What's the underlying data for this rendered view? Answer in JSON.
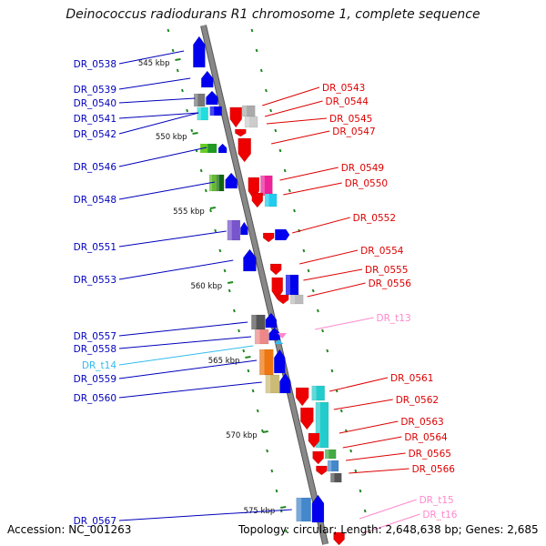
{
  "title": "Deinococcus radiodurans R1 chromosome 1, complete sequence",
  "accession": "Accession: NC_001263",
  "footer": "Topology: circular; Length: 2,648,638 bp; Genes: 2,685",
  "colors": {
    "left_labels": "#0000bb",
    "right_labels": "#dd0000",
    "trna_left": "#33bbee",
    "trna_right": "#ff88cc",
    "backbone": "#888888",
    "tick": "#228822"
  },
  "scale_labels": [
    "545 kbp",
    "550 kbp",
    "555 kbp",
    "560 kbp",
    "565 kbp",
    "570 kbp",
    "575 kbp"
  ],
  "left_genes": [
    "DR_0538",
    "DR_0539",
    "DR_0540",
    "DR_0541",
    "DR_0542",
    "DR_0546",
    "DR_0548",
    "DR_0551",
    "DR_0553",
    "DR_0557",
    "DR_0558",
    "DR_t14",
    "DR_0559",
    "DR_0560",
    "DR_0567"
  ],
  "right_genes": [
    "DR_0543",
    "DR_0544",
    "DR_0545",
    "DR_0547",
    "DR_0549",
    "DR_0550",
    "DR_0552",
    "DR_0554",
    "DR_0555",
    "DR_0556",
    "DR_t13",
    "DR_0561",
    "DR_0562",
    "DR_0563",
    "DR_0564",
    "DR_0565",
    "DR_0566",
    "DR_t15",
    "DR_t16"
  ]
}
